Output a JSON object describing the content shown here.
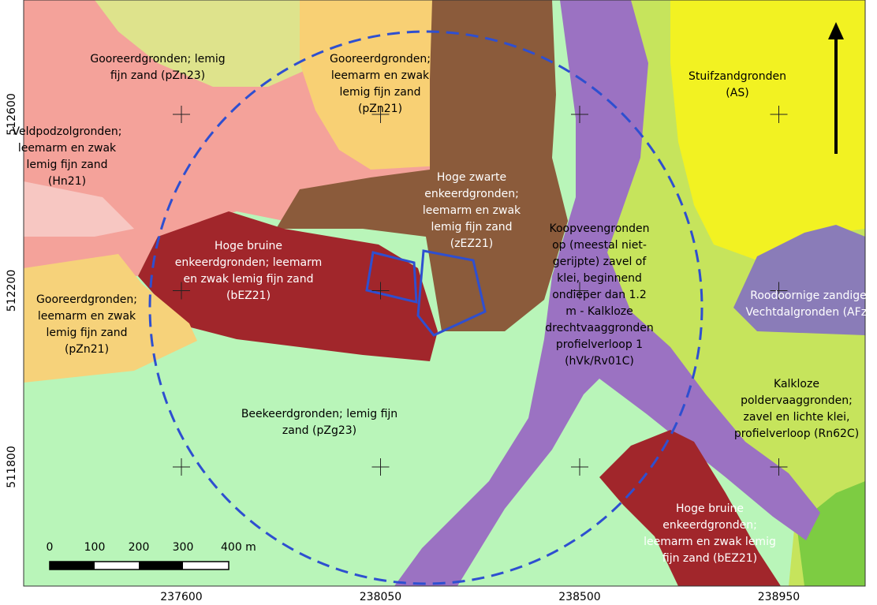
{
  "map": {
    "labels": [
      {
        "lines": [
          "Gooreerdgronden; lemig",
          "fijn zand (pZn23)"
        ]
      },
      {
        "lines": [
          "Gooreerdgronden;",
          "leemarm en zwak",
          "lemig fijn zand",
          "(pZn21)"
        ]
      },
      {
        "lines": [
          "Veldpodzolgronden;",
          "leemarm en zwak",
          "lemig fijn zand",
          "(Hn21)"
        ]
      },
      {
        "lines": [
          "Hoge zwarte",
          "enkeerdgronden;",
          "leemarm en zwak",
          "lemig fijn zand",
          "(zEZ21)"
        ]
      },
      {
        "lines": [
          "Hoge bruine",
          "enkeerdgronden; leemarm",
          "en zwak lemig fijn zand",
          "(bEZ21)"
        ]
      },
      {
        "lines": [
          "Koopveengronden",
          "op (meestal niet-",
          "gerijpte) zavel of",
          "klei, beginnend",
          "ondieper dan 1.2",
          "m - Kalkloze",
          "drechtvaaggronden",
          "profielverloop 1",
          "(hVk/Rv01C)"
        ]
      },
      {
        "lines": [
          "Stuifzandgronden",
          "(AS)"
        ]
      },
      {
        "lines": [
          "Roodoornige zandige",
          "Vechtdalgronden (AFz)"
        ]
      },
      {
        "lines": [
          "Gooreerdgronden;",
          "leemarm en zwak",
          "lemig fijn zand",
          "(pZn21)"
        ]
      },
      {
        "lines": [
          "Kalkloze",
          "poldervaaggronden;",
          "zavel en lichte klei,",
          "profielverloop (Rn62C)"
        ]
      },
      {
        "lines": [
          "Beekeerdgronden; lemig fijn",
          "zand (pZg23)"
        ]
      },
      {
        "lines": [
          "Hoge bruine",
          "enkeerdgronden;",
          "leemarm en zwak lemig",
          "fijn zand (bEZ21)"
        ]
      }
    ],
    "x_ticks": [
      237600,
      238050,
      238500,
      238950
    ],
    "y_ticks": [
      512600,
      512200,
      511800
    ],
    "scale_bar": {
      "labels": [
        "0",
        "100",
        "200",
        "300",
        "400 m"
      ]
    }
  }
}
